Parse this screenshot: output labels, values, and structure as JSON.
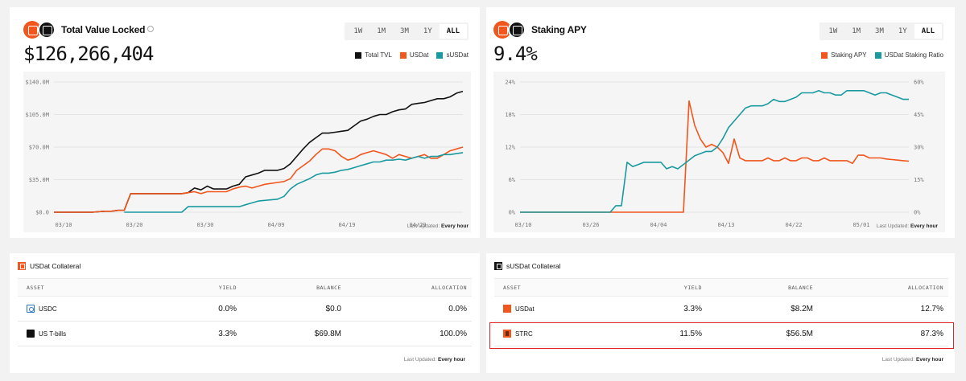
{
  "tvl_card": {
    "title": "Total Value Locked",
    "value": "$126,266,404",
    "ranges": [
      "1W",
      "1M",
      "3M",
      "1Y",
      "ALL"
    ],
    "active_range": "ALL",
    "legend": [
      {
        "label": "Total TVL",
        "color": "#111111"
      },
      {
        "label": "USDat",
        "color": "#f0561d"
      },
      {
        "label": "sUSDat",
        "color": "#1a9aa0"
      }
    ],
    "last_updated_label": "Last Updated:",
    "last_updated_value": "Every hour"
  },
  "apy_card": {
    "title": "Staking APY",
    "value": "9.4%",
    "ranges": [
      "1W",
      "1M",
      "3M",
      "1Y",
      "ALL"
    ],
    "active_range": "ALL",
    "legend": [
      {
        "label": "Staking APY",
        "color": "#f0561d"
      },
      {
        "label": "USDat Staking Ratio",
        "color": "#1a9aa0"
      }
    ],
    "last_updated_label": "Last Updated:",
    "last_updated_value": "Every hour"
  },
  "chart_data": [
    {
      "type": "line",
      "title": "Total Value Locked",
      "x_ticks": [
        "03/10",
        "03/20",
        "03/30",
        "04/09",
        "04/19",
        "04/29"
      ],
      "y_ticks": [
        "$0.0",
        "$35.0M",
        "$70.0M",
        "$105.0M",
        "$140.0M"
      ],
      "ylim": [
        0,
        140
      ],
      "x_range": [
        0,
        64
      ],
      "series": [
        {
          "name": "Total TVL",
          "color": "#111111",
          "x": [
            0,
            5,
            6,
            8,
            9,
            10,
            11,
            12,
            20,
            21,
            22,
            23,
            24,
            25,
            27,
            28,
            29,
            30,
            31,
            32,
            33,
            35,
            36,
            37,
            38,
            39,
            40,
            41,
            42,
            43,
            44,
            45,
            46,
            47,
            48,
            49,
            50,
            51,
            52,
            53,
            54,
            55,
            56,
            57,
            58,
            59,
            60,
            61,
            62,
            63,
            64
          ],
          "y": [
            0,
            0,
            0,
            1,
            1,
            2,
            2,
            20,
            20,
            21,
            26,
            24,
            28,
            25,
            25,
            28,
            30,
            38,
            40,
            42,
            45,
            45,
            47,
            52,
            60,
            68,
            75,
            80,
            85,
            85,
            86,
            87,
            88,
            93,
            98,
            100,
            103,
            105,
            105,
            108,
            110,
            111,
            116,
            117,
            118,
            120,
            122,
            122,
            124,
            128,
            130
          ]
        },
        {
          "name": "USDat",
          "color": "#f0561d",
          "x": [
            0,
            5,
            6,
            8,
            9,
            10,
            11,
            12,
            20,
            21,
            22,
            23,
            24,
            25,
            27,
            28,
            29,
            30,
            31,
            32,
            33,
            35,
            36,
            37,
            38,
            39,
            40,
            41,
            42,
            43,
            44,
            45,
            46,
            47,
            48,
            49,
            50,
            51,
            52,
            53,
            54,
            55,
            56,
            57,
            58,
            59,
            60,
            61,
            62,
            63,
            64
          ],
          "y": [
            0,
            0,
            0,
            1,
            1,
            2,
            2,
            20,
            20,
            21,
            22,
            20,
            22,
            22,
            22,
            25,
            27,
            28,
            26,
            28,
            30,
            32,
            33,
            36,
            45,
            50,
            55,
            62,
            68,
            68,
            66,
            60,
            56,
            58,
            62,
            64,
            66,
            64,
            62,
            58,
            62,
            60,
            58,
            60,
            62,
            58,
            58,
            62,
            66,
            68,
            70
          ]
        },
        {
          "name": "sUSDat",
          "color": "#1a9aa0",
          "x": [
            11,
            20,
            21,
            22,
            29,
            30,
            31,
            32,
            35,
            36,
            37,
            38,
            40,
            41,
            42,
            43,
            44,
            45,
            46,
            47,
            48,
            49,
            50,
            51,
            52,
            53,
            54,
            55,
            56,
            57,
            58,
            59,
            60,
            61,
            62,
            63,
            64
          ],
          "y": [
            0,
            0,
            6,
            6,
            6,
            8,
            10,
            12,
            14,
            17,
            25,
            30,
            36,
            40,
            42,
            42,
            43,
            45,
            46,
            48,
            50,
            52,
            54,
            54,
            56,
            56,
            57,
            56,
            58,
            60,
            58,
            60,
            60,
            62,
            62,
            63,
            64
          ]
        }
      ]
    },
    {
      "type": "line",
      "title": "Staking APY",
      "x_ticks": [
        "03/10",
        "03/26",
        "04/04",
        "04/13",
        "04/22",
        "05/01"
      ],
      "y_ticks_left": [
        "0%",
        "6%",
        "12%",
        "18%",
        "24%"
      ],
      "y_ticks_right": [
        "0%",
        "15%",
        "30%",
        "45%",
        "60%"
      ],
      "ylim_left": [
        0,
        24
      ],
      "ylim_right": [
        0,
        60
      ],
      "x_range": [
        0,
        69
      ],
      "series": [
        {
          "name": "Staking APY",
          "axis": "left",
          "color": "#f0561d",
          "x": [
            0,
            29,
            30,
            31,
            32,
            33,
            34,
            35,
            36,
            37,
            38,
            39,
            40,
            41,
            42,
            43,
            44,
            45,
            46,
            47,
            48,
            49,
            50,
            51,
            52,
            53,
            54,
            55,
            56,
            57,
            58,
            59,
            60,
            61,
            62,
            63,
            64,
            65,
            66,
            67,
            68,
            69
          ],
          "y": [
            0,
            0,
            20.5,
            16,
            13.5,
            12,
            12.5,
            12,
            11,
            9,
            13.5,
            10,
            9.5,
            9.5,
            9.5,
            9.5,
            10,
            9.5,
            9.5,
            10,
            9.5,
            9.5,
            10,
            10,
            9.5,
            9.5,
            10,
            9.5,
            9.5,
            9.5,
            9.5,
            9,
            10.5,
            10.5,
            10,
            10,
            10,
            9.8,
            9.7,
            9.6,
            9.5,
            9.4
          ]
        },
        {
          "name": "USDat Staking Ratio",
          "axis": "right",
          "color": "#1a9aa0",
          "x": [
            0,
            15,
            16,
            17,
            18,
            19,
            20,
            21,
            22,
            23,
            24,
            25,
            26,
            27,
            28,
            29,
            30,
            31,
            32,
            33,
            34,
            35,
            36,
            37,
            38,
            39,
            40,
            41,
            42,
            43,
            44,
            45,
            46,
            47,
            48,
            49,
            50,
            51,
            52,
            53,
            54,
            55,
            56,
            57,
            58,
            59,
            60,
            61,
            62,
            63,
            64,
            65,
            66,
            67,
            68,
            69
          ],
          "y": [
            0,
            0,
            0,
            3,
            3,
            23,
            21,
            22,
            23,
            23,
            23,
            23,
            20,
            21,
            20,
            22,
            24,
            26,
            27,
            28,
            28,
            30,
            34,
            39,
            42,
            45,
            48,
            49,
            49,
            49,
            50,
            52,
            51,
            51,
            52,
            53,
            55,
            55,
            55,
            56,
            55,
            55,
            54,
            54,
            56,
            56,
            56,
            56,
            55,
            54,
            55,
            55,
            54,
            53,
            52,
            52
          ]
        }
      ]
    }
  ],
  "usdat_collateral": {
    "title": "USDat Collateral",
    "columns": [
      "ASSET",
      "YIELD",
      "BALANCE",
      "ALLOCATION"
    ],
    "rows": [
      {
        "asset": "USDC",
        "yield": "0.0%",
        "balance": "$0.0",
        "allocation": "0.0%",
        "icon": "usdc-icon"
      },
      {
        "asset": "US T-bills",
        "yield": "3.3%",
        "balance": "$69.8M",
        "allocation": "100.0%",
        "icon": "tbill-icon"
      }
    ],
    "last_updated_label": "Last Updated:",
    "last_updated_value": "Every hour"
  },
  "susdat_collateral": {
    "title": "sUSDat Collateral",
    "columns": [
      "ASSET",
      "YIELD",
      "BALANCE",
      "ALLOCATION"
    ],
    "rows": [
      {
        "asset": "USDat",
        "yield": "3.3%",
        "balance": "$8.2M",
        "allocation": "12.7%",
        "icon": "usdat-icon"
      },
      {
        "asset": "STRC",
        "yield": "11.5%",
        "balance": "$56.5M",
        "allocation": "87.3%",
        "icon": "strc-icon"
      }
    ],
    "last_updated_label": "Last Updated:",
    "last_updated_value": "Every hour"
  },
  "colors": {
    "accent": "#f0561d",
    "teal": "#1a9aa0",
    "highlight": "#e02424"
  }
}
